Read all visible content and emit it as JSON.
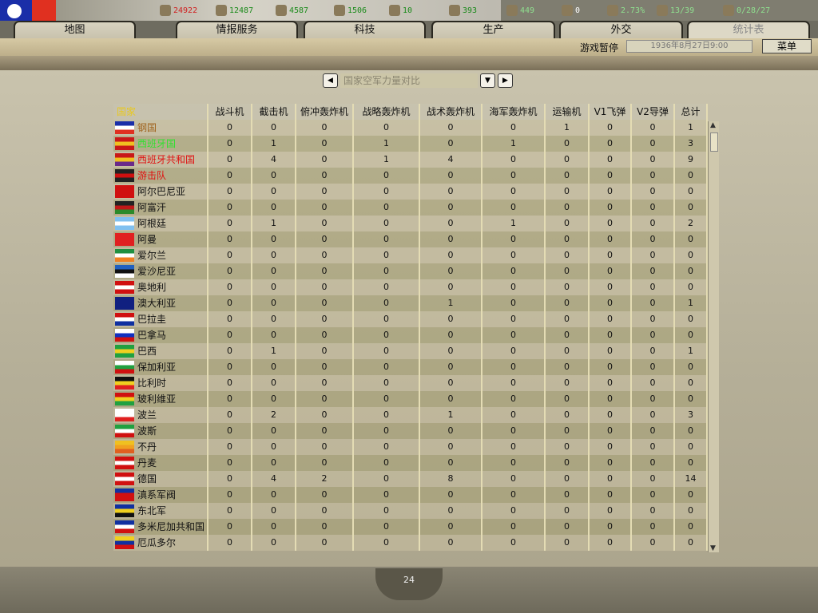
{
  "resources": [
    {
      "icon": "energy-icon",
      "value": "24922",
      "color": "#d02020"
    },
    {
      "icon": "metal-icon",
      "value": "12487",
      "color": "#1a8a1a"
    },
    {
      "icon": "rare-materials-icon",
      "value": "4587",
      "color": "#1a8a1a"
    },
    {
      "icon": "oil-icon",
      "value": "1506",
      "color": "#1a8a1a"
    },
    {
      "icon": "supplies-icon",
      "value": "10",
      "color": "#1a8a1a"
    },
    {
      "icon": "money-icon",
      "value": "393",
      "color": "#1a8a1a"
    },
    {
      "icon": "manpower-icon",
      "value": "449",
      "color": "#8fe08f"
    },
    {
      "icon": "diplomacy-icon",
      "value": "0",
      "color": "#ffffff"
    },
    {
      "icon": "dissent-icon",
      "value": "2.73%",
      "color": "#8fe08f"
    },
    {
      "icon": "transport-icon",
      "value": "13/39",
      "color": "#8fe08f"
    },
    {
      "icon": "convoy-icon",
      "value": "0/28/27",
      "color": "#8fe08f"
    }
  ],
  "tabs": [
    {
      "label": "地图"
    },
    {
      "label": "情报服务"
    },
    {
      "label": "科技"
    },
    {
      "label": "生产"
    },
    {
      "label": "外交"
    },
    {
      "label": "统计表",
      "active": true
    }
  ],
  "status": {
    "paused": "游戏暂停",
    "date": "1936年8月27日9:00",
    "menu": "菜单"
  },
  "selector": {
    "value": "国家空军力量对比"
  },
  "table": {
    "headers": [
      "国家",
      "战斗机",
      "截击机",
      "俯冲轰炸机",
      "战略轰炸机",
      "战术轰炸机",
      "海军轰炸机",
      "运输机",
      "V1飞弹",
      "V2导弹",
      "总计"
    ],
    "rows": [
      {
        "name": "钢国",
        "color": "#a0641e",
        "flag": [
          "#1a2ea8",
          "#ffffff",
          "#e03020"
        ],
        "values": [
          0,
          0,
          0,
          0,
          0,
          0,
          1,
          0,
          0,
          1
        ]
      },
      {
        "name": "西班牙国",
        "color": "#30e030",
        "flag": [
          "#c81818",
          "#f0c020",
          "#c81818"
        ],
        "values": [
          0,
          1,
          0,
          1,
          0,
          1,
          0,
          0,
          0,
          3
        ]
      },
      {
        "name": "西班牙共和国",
        "color": "#e01010",
        "flag": [
          "#c81818",
          "#f0c020",
          "#6a2a8a"
        ],
        "values": [
          0,
          4,
          0,
          1,
          4,
          0,
          0,
          0,
          0,
          9
        ]
      },
      {
        "name": "游击队",
        "color": "#e01010",
        "flag": [
          "#222222",
          "#d01010",
          "#222222"
        ],
        "values": [
          0,
          0,
          0,
          0,
          0,
          0,
          0,
          0,
          0,
          0
        ]
      },
      {
        "name": "阿尔巴尼亚",
        "color": "#111111",
        "flag": [
          "#d01010",
          "#d01010",
          "#d01010"
        ],
        "values": [
          0,
          0,
          0,
          0,
          0,
          0,
          0,
          0,
          0,
          0
        ]
      },
      {
        "name": "阿富汗",
        "color": "#111111",
        "flag": [
          "#222222",
          "#c01818",
          "#2a8a2a"
        ],
        "values": [
          0,
          0,
          0,
          0,
          0,
          0,
          0,
          0,
          0,
          0
        ]
      },
      {
        "name": "阿根廷",
        "color": "#111111",
        "flag": [
          "#80c0f0",
          "#ffffff",
          "#80c0f0"
        ],
        "values": [
          0,
          1,
          0,
          0,
          0,
          1,
          0,
          0,
          0,
          2
        ]
      },
      {
        "name": "阿曼",
        "color": "#111111",
        "flag": [
          "#e02020",
          "#e02020",
          "#e02020"
        ],
        "values": [
          0,
          0,
          0,
          0,
          0,
          0,
          0,
          0,
          0,
          0
        ]
      },
      {
        "name": "爱尔兰",
        "color": "#111111",
        "flag": [
          "#209040",
          "#ffffff",
          "#f08020"
        ],
        "values": [
          0,
          0,
          0,
          0,
          0,
          0,
          0,
          0,
          0,
          0
        ]
      },
      {
        "name": "爱沙尼亚",
        "color": "#111111",
        "flag": [
          "#2060c0",
          "#111111",
          "#ffffff"
        ],
        "values": [
          0,
          0,
          0,
          0,
          0,
          0,
          0,
          0,
          0,
          0
        ]
      },
      {
        "name": "奥地利",
        "color": "#111111",
        "flag": [
          "#d01010",
          "#ffffff",
          "#d01010"
        ],
        "values": [
          0,
          0,
          0,
          0,
          0,
          0,
          0,
          0,
          0,
          0
        ]
      },
      {
        "name": "澳大利亚",
        "color": "#111111",
        "flag": [
          "#102080",
          "#102080",
          "#102080"
        ],
        "values": [
          0,
          0,
          0,
          0,
          1,
          0,
          0,
          0,
          0,
          1
        ]
      },
      {
        "name": "巴拉圭",
        "color": "#111111",
        "flag": [
          "#d01010",
          "#ffffff",
          "#1030a0"
        ],
        "values": [
          0,
          0,
          0,
          0,
          0,
          0,
          0,
          0,
          0,
          0
        ]
      },
      {
        "name": "巴拿马",
        "color": "#111111",
        "flag": [
          "#ffffff",
          "#1030c0",
          "#d01010"
        ],
        "values": [
          0,
          0,
          0,
          0,
          0,
          0,
          0,
          0,
          0,
          0
        ]
      },
      {
        "name": "巴西",
        "color": "#111111",
        "flag": [
          "#20a040",
          "#f0d020",
          "#20a040"
        ],
        "values": [
          0,
          1,
          0,
          0,
          0,
          0,
          0,
          0,
          0,
          1
        ]
      },
      {
        "name": "保加利亚",
        "color": "#111111",
        "flag": [
          "#ffffff",
          "#20a040",
          "#d01010"
        ],
        "values": [
          0,
          0,
          0,
          0,
          0,
          0,
          0,
          0,
          0,
          0
        ]
      },
      {
        "name": "比利时",
        "color": "#111111",
        "flag": [
          "#111111",
          "#f0d020",
          "#e02020"
        ],
        "values": [
          0,
          0,
          0,
          0,
          0,
          0,
          0,
          0,
          0,
          0
        ]
      },
      {
        "name": "玻利维亚",
        "color": "#111111",
        "flag": [
          "#d01010",
          "#f0d020",
          "#20a040"
        ],
        "values": [
          0,
          0,
          0,
          0,
          0,
          0,
          0,
          0,
          0,
          0
        ]
      },
      {
        "name": "波兰",
        "color": "#111111",
        "flag": [
          "#ffffff",
          "#ffffff",
          "#e02020"
        ],
        "values": [
          0,
          2,
          0,
          0,
          1,
          0,
          0,
          0,
          0,
          3
        ]
      },
      {
        "name": "波斯",
        "color": "#111111",
        "flag": [
          "#20a040",
          "#ffffff",
          "#d01010"
        ],
        "values": [
          0,
          0,
          0,
          0,
          0,
          0,
          0,
          0,
          0,
          0
        ]
      },
      {
        "name": "不丹",
        "color": "#111111",
        "flag": [
          "#f0c020",
          "#f0a020",
          "#e06020"
        ],
        "values": [
          0,
          0,
          0,
          0,
          0,
          0,
          0,
          0,
          0,
          0
        ]
      },
      {
        "name": "丹麦",
        "color": "#111111",
        "flag": [
          "#d01010",
          "#ffffff",
          "#d01010"
        ],
        "values": [
          0,
          0,
          0,
          0,
          0,
          0,
          0,
          0,
          0,
          0
        ]
      },
      {
        "name": "德国",
        "color": "#111111",
        "flag": [
          "#d01010",
          "#ffffff",
          "#d01010"
        ],
        "values": [
          0,
          4,
          2,
          0,
          8,
          0,
          0,
          0,
          0,
          14
        ]
      },
      {
        "name": "滇系军阀",
        "color": "#111111",
        "flag": [
          "#1030a0",
          "#d01010",
          "#d01010"
        ],
        "values": [
          0,
          0,
          0,
          0,
          0,
          0,
          0,
          0,
          0,
          0
        ]
      },
      {
        "name": "东北军",
        "color": "#111111",
        "flag": [
          "#1030a0",
          "#f0d020",
          "#111111"
        ],
        "values": [
          0,
          0,
          0,
          0,
          0,
          0,
          0,
          0,
          0,
          0
        ]
      },
      {
        "name": "多米尼加共和国",
        "color": "#111111",
        "flag": [
          "#1030a0",
          "#ffffff",
          "#d01010"
        ],
        "values": [
          0,
          0,
          0,
          0,
          0,
          0,
          0,
          0,
          0,
          0
        ]
      },
      {
        "name": "厄瓜多尔",
        "color": "#111111",
        "flag": [
          "#f0d020",
          "#1030a0",
          "#d01010"
        ],
        "values": [
          0,
          0,
          0,
          0,
          0,
          0,
          0,
          0,
          0,
          0
        ]
      }
    ]
  },
  "page": {
    "number": "24"
  }
}
